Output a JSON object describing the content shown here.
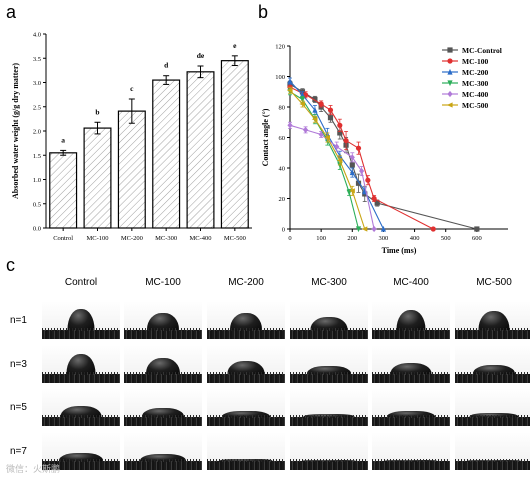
{
  "panels": {
    "a": "a",
    "b": "b",
    "c": "c"
  },
  "chart_data": [
    {
      "type": "bar",
      "title": "",
      "xlabel": "",
      "ylabel": "Absorbed water weight (g/g dry matter)",
      "categories": [
        "Control",
        "MC-100",
        "MC-200",
        "MC-300",
        "MC-400",
        "MC-500"
      ],
      "values": [
        1.55,
        2.06,
        2.41,
        3.05,
        3.22,
        3.45
      ],
      "errors": [
        0.05,
        0.12,
        0.25,
        0.09,
        0.12,
        0.1
      ],
      "significance": [
        "a",
        "b",
        "c",
        "d",
        "de",
        "e"
      ],
      "ylim": [
        0.0,
        4.0
      ],
      "yticks": [
        "0.0",
        "0.5",
        "1.0",
        "1.5",
        "2.0",
        "2.5",
        "3.0",
        "3.5",
        "4.0"
      ],
      "bar_fill": "hatched"
    },
    {
      "type": "line",
      "title": "",
      "xlabel": "Time (ms)",
      "ylabel": "Contact angle (°)",
      "xlim": [
        0,
        700
      ],
      "ylim": [
        0,
        120
      ],
      "xticks": [
        "0",
        "100",
        "200",
        "300",
        "400",
        "500",
        "600"
      ],
      "yticks": [
        "0",
        "20",
        "40",
        "60",
        "80",
        "100",
        "120"
      ],
      "legend_position": "top-right",
      "series": [
        {
          "name": "MC-Control",
          "color": "#555555",
          "marker": "square",
          "x": [
            0,
            40,
            80,
            100,
            130,
            160,
            180,
            200,
            220,
            240,
            280,
            600
          ],
          "y": [
            95,
            90,
            85,
            80,
            73,
            63,
            55,
            42,
            30,
            23,
            17,
            0
          ],
          "err": [
            2,
            2,
            2,
            3,
            3,
            4,
            5,
            5,
            6,
            5,
            2,
            0
          ]
        },
        {
          "name": "MC-100",
          "color": "#e03030",
          "marker": "circle",
          "x": [
            0,
            50,
            100,
            130,
            160,
            180,
            220,
            250,
            270,
            460
          ],
          "y": [
            93,
            88,
            82,
            78,
            68,
            58,
            53,
            32,
            20,
            0
          ],
          "err": [
            2,
            2,
            2,
            3,
            4,
            6,
            4,
            3,
            2,
            0
          ]
        },
        {
          "name": "MC-200",
          "color": "#2a6cc8",
          "marker": "triangle-up",
          "x": [
            0,
            40,
            80,
            120,
            160,
            200,
            240,
            300
          ],
          "y": [
            97,
            88,
            78,
            62,
            48,
            37,
            25,
            0
          ],
          "err": [
            2,
            2,
            3,
            4,
            3,
            3,
            2,
            0
          ]
        },
        {
          "name": "MC-300",
          "color": "#2cae5a",
          "marker": "triangle-down",
          "x": [
            0,
            40,
            80,
            120,
            160,
            190,
            220
          ],
          "y": [
            90,
            85,
            72,
            58,
            42,
            24,
            0
          ],
          "err": [
            2,
            2,
            3,
            3,
            3,
            2,
            0
          ]
        },
        {
          "name": "MC-400",
          "color": "#b07ad8",
          "marker": "diamond",
          "x": [
            0,
            50,
            100,
            150,
            200,
            230,
            270
          ],
          "y": [
            68,
            65,
            62,
            54,
            47,
            38,
            0
          ],
          "err": [
            2,
            2,
            2,
            3,
            3,
            3,
            0
          ]
        },
        {
          "name": "MC-500",
          "color": "#c9a514",
          "marker": "triangle-left",
          "x": [
            0,
            40,
            80,
            120,
            160,
            200,
            240
          ],
          "y": [
            91,
            82,
            72,
            60,
            45,
            25,
            0
          ],
          "err": [
            2,
            2,
            2,
            3,
            3,
            3,
            0
          ]
        }
      ]
    }
  ],
  "droplet_grid": {
    "columns": [
      "Control",
      "MC-100",
      "MC-200",
      "MC-300",
      "MC-400",
      "MC-500"
    ],
    "rows": [
      {
        "label": "n=1",
        "drop_heights": [
          0.85,
          0.7,
          0.7,
          0.55,
          0.8,
          0.75
        ]
      },
      {
        "label": "n=3",
        "drop_heights": [
          0.8,
          0.65,
          0.55,
          0.35,
          0.45,
          0.4
        ]
      },
      {
        "label": "n=5",
        "drop_heights": [
          0.45,
          0.4,
          0.25,
          0.15,
          0.25,
          0.2
        ]
      },
      {
        "label": "n=7",
        "drop_heights": [
          0.35,
          0.3,
          0.1,
          0.05,
          0.08,
          0.05
        ]
      }
    ]
  },
  "watermark": "微信：火斯鹏"
}
